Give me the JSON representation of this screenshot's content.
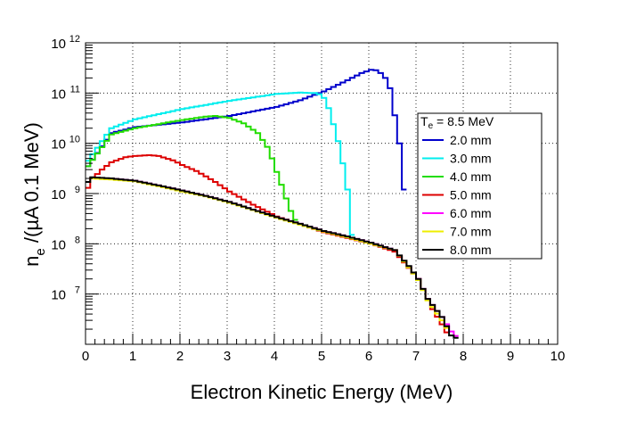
{
  "chart_data": {
    "type": "line",
    "title": "",
    "xlabel": "Electron Kinetic Energy (MeV)",
    "ylabel_main": "n",
    "ylabel_sub": "e",
    "ylabel_rest": " /(µA 0.1 MeV)",
    "xlim": [
      0,
      10
    ],
    "ylim": [
      1000000,
      1000000000000
    ],
    "y_scale": "log",
    "grid": true,
    "x_ticks": [
      "0",
      "1",
      "2",
      "3",
      "4",
      "5",
      "6",
      "7",
      "8",
      "9",
      "10"
    ],
    "y_ticks": [
      {
        "base": "10",
        "exp": "7",
        "value": 10000000
      },
      {
        "base": "10",
        "exp": "8",
        "value": 100000000
      },
      {
        "base": "10",
        "exp": "9",
        "value": 1000000000
      },
      {
        "base": "10",
        "exp": "10",
        "value": 10000000000
      },
      {
        "base": "10",
        "exp": "11",
        "value": 100000000000
      },
      {
        "base": "10",
        "exp": "12",
        "value": 1000000000000
      }
    ],
    "legend": {
      "header_main": "T",
      "header_sub": "e",
      "header_rest": " = 8.5 MeV",
      "placement": "top-right"
    },
    "series": [
      {
        "name": "2.0 mm",
        "color": "#0000cc",
        "x": [
          0.0,
          0.5,
          1.0,
          2.0,
          3.0,
          4.0,
          4.5,
          5.0,
          5.5,
          5.8,
          6.0,
          6.1,
          6.2,
          6.3,
          6.4,
          6.5,
          6.6,
          6.7,
          6.8
        ],
        "y": [
          3500000000.0,
          16000000000.0,
          21000000000.0,
          26000000000.0,
          35000000000.0,
          53000000000.0,
          72000000000.0,
          108000000000.0,
          180000000000.0,
          250000000000.0,
          290000000000.0,
          285000000000.0,
          250000000000.0,
          200000000000.0,
          125000000000.0,
          36000000000.0,
          10000000000.0,
          1200000000.0,
          100000000.0
        ]
      },
      {
        "name": "3.0 mm",
        "color": "#00eeee",
        "x": [
          0.0,
          0.5,
          1.0,
          2.0,
          3.0,
          4.0,
          4.5,
          4.8,
          4.9,
          5.0,
          5.1,
          5.2,
          5.3,
          5.4,
          5.5,
          5.6,
          5.7
        ],
        "y": [
          4500000000.0,
          20000000000.0,
          30000000000.0,
          48000000000.0,
          70000000000.0,
          96000000000.0,
          102000000000.0,
          100000000000.0,
          95000000000.0,
          80000000000.0,
          50000000000.0,
          24000000000.0,
          11000000000.0,
          4000000000.0,
          1200000000.0,
          150000000.0,
          80000000.0
        ]
      },
      {
        "name": "4.0 mm",
        "color": "#22dd00",
        "x": [
          0.0,
          0.5,
          1.0,
          2.0,
          2.5,
          2.7,
          3.0,
          3.3,
          3.6,
          3.8,
          3.9,
          4.0,
          4.1,
          4.2,
          4.3,
          4.4,
          4.5
        ],
        "y": [
          3500000000.0,
          15000000000.0,
          20000000000.0,
          29000000000.0,
          34000000000.0,
          35000000000.0,
          32000000000.0,
          25000000000.0,
          16000000000.0,
          8500000000.0,
          5000000000.0,
          2700000000.0,
          1500000000.0,
          800000000.0,
          450000000.0,
          300000000.0,
          220000000.0
        ]
      },
      {
        "name": "5.0 mm",
        "color": "#dd0000",
        "x": [
          0.0,
          0.1,
          0.3,
          0.5,
          0.8,
          1.0,
          1.3,
          1.5,
          1.8,
          2.0,
          2.3,
          2.5,
          2.7,
          3.0,
          3.5,
          4.0,
          5.0,
          6.0,
          6.5,
          7.0,
          7.3,
          7.5,
          7.7
        ],
        "y": [
          1300000000.0,
          2000000000.0,
          3000000000.0,
          4200000000.0,
          5300000000.0,
          5600000000.0,
          5800000000.0,
          5600000000.0,
          4600000000.0,
          3700000000.0,
          2800000000.0,
          2200000000.0,
          1700000000.0,
          1100000000.0,
          600000000.0,
          350000000.0,
          170000000.0,
          100000000.0,
          70000000.0,
          20000000.0,
          5000000.0,
          2500000.0,
          1200000.0
        ]
      },
      {
        "name": "6.0 mm",
        "color": "#ff00ff",
        "x": [
          0.0,
          0.1,
          0.5,
          1.0,
          1.5,
          2.0,
          2.5,
          3.0,
          3.5,
          4.0,
          4.5,
          5.0,
          5.5,
          6.0,
          6.5,
          6.8,
          7.0,
          7.2,
          7.5,
          7.7,
          7.9
        ],
        "y": [
          1700000000.0,
          2000000000.0,
          2000000000.0,
          1800000000.0,
          1450000000.0,
          1150000000.0,
          900000000.0,
          680000000.0,
          480000000.0,
          340000000.0,
          250000000.0,
          180000000.0,
          140000000.0,
          105000000.0,
          75000000.0,
          35000000.0,
          20000000.0,
          8000000.0,
          3500000.0,
          1800000.0,
          1200000.0
        ]
      },
      {
        "name": "7.0 mm",
        "color": "#eeee00",
        "x": [
          0.0,
          0.1,
          0.5,
          1.0,
          1.5,
          2.0,
          2.5,
          3.0,
          3.5,
          4.0,
          4.5,
          5.0,
          5.5,
          6.0,
          6.5,
          6.8,
          7.0,
          7.2,
          7.5,
          7.7
        ],
        "y": [
          1700000000.0,
          2000000000.0,
          1900000000.0,
          1750000000.0,
          1400000000.0,
          1100000000.0,
          880000000.0,
          660000000.0,
          470000000.0,
          330000000.0,
          240000000.0,
          175000000.0,
          135000000.0,
          100000000.0,
          75000000.0,
          34000000.0,
          19000000.0,
          7500000.0,
          3000000.0,
          1500000.0
        ]
      },
      {
        "name": "8.0 mm",
        "color": "#000000",
        "x": [
          0.0,
          0.1,
          0.5,
          1.0,
          1.5,
          2.0,
          2.5,
          3.0,
          3.5,
          4.0,
          4.5,
          5.0,
          5.5,
          6.0,
          6.5,
          6.8,
          7.0,
          7.2,
          7.5,
          7.7,
          7.9
        ],
        "y": [
          1700000000.0,
          2100000000.0,
          2000000000.0,
          1800000000.0,
          1450000000.0,
          1150000000.0,
          900000000.0,
          680000000.0,
          480000000.0,
          340000000.0,
          250000000.0,
          180000000.0,
          140000000.0,
          105000000.0,
          75000000.0,
          36000000.0,
          20000000.0,
          8000000.0,
          3500000.0,
          1500000.0,
          1200000.0
        ]
      }
    ]
  }
}
